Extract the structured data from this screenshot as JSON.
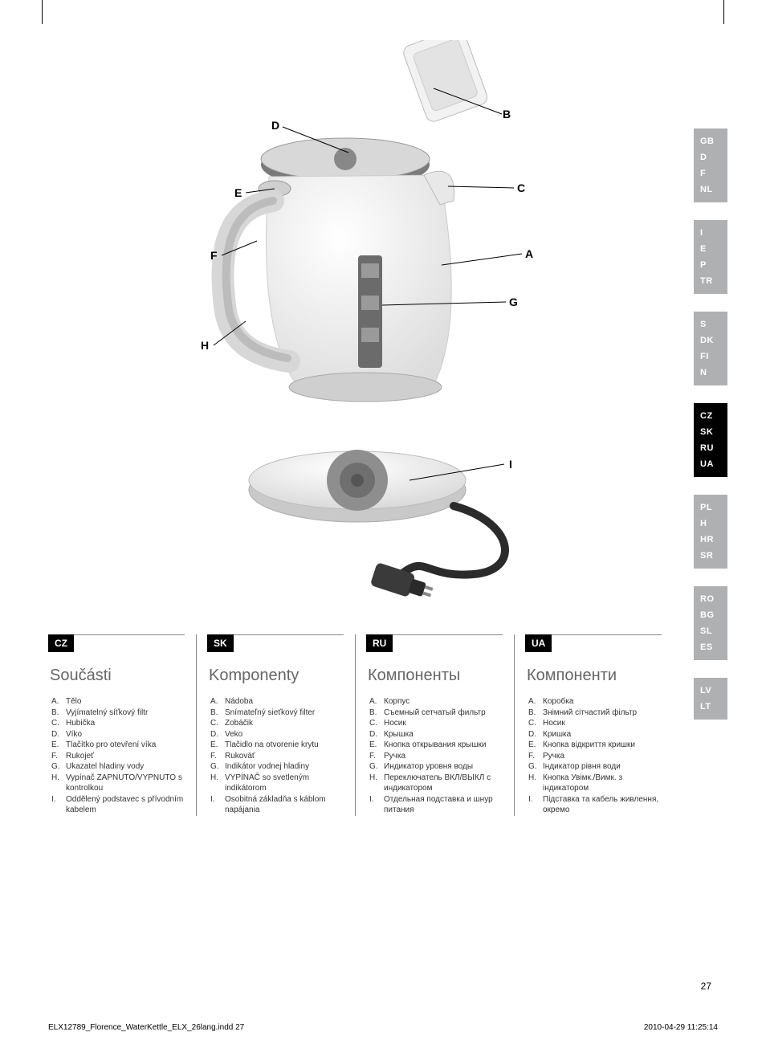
{
  "page_number": "27",
  "footer_left": "ELX12789_Florence_WaterKettle_ELX_26lang.indd   27",
  "footer_right": "2010-04-29   11:25:14",
  "diagram_labels": {
    "A": "A",
    "B": "B",
    "C": "C",
    "D": "D",
    "E": "E",
    "F": "F",
    "G": "G",
    "H": "H",
    "I": "I"
  },
  "columns": [
    {
      "code": "CZ",
      "title": "Součásti",
      "items": [
        {
          "l": "A.",
          "t": "Tělo"
        },
        {
          "l": "B.",
          "t": "Vyjímatelný síťkový filtr"
        },
        {
          "l": "C.",
          "t": "Hubička"
        },
        {
          "l": "D.",
          "t": "Víko"
        },
        {
          "l": "E.",
          "t": "Tlačítko pro otevření víka"
        },
        {
          "l": "F.",
          "t": "Rukojeť"
        },
        {
          "l": "G.",
          "t": "Ukazatel hladiny vody"
        },
        {
          "l": "H.",
          "t": "Vypínač ZAPNUTO/VYPNUTO s kontrolkou"
        },
        {
          "l": "I.",
          "t": "Oddělený podstavec s přívodním kabelem"
        }
      ]
    },
    {
      "code": "SK",
      "title": "Komponenty",
      "items": [
        {
          "l": "A.",
          "t": "Nádoba"
        },
        {
          "l": "B.",
          "t": "Snímateľný sieťkový filter"
        },
        {
          "l": "C.",
          "t": "Zobáčik"
        },
        {
          "l": "D.",
          "t": "Veko"
        },
        {
          "l": "E.",
          "t": "Tlačidlo na otvorenie krytu"
        },
        {
          "l": "F.",
          "t": "Rukoväť"
        },
        {
          "l": "G.",
          "t": "Indikátor vodnej hladiny"
        },
        {
          "l": "H.",
          "t": "VYPÍNAČ so svetleným indikátorom"
        },
        {
          "l": "I.",
          "t": "Osobitná základňa s káblom napájania"
        }
      ]
    },
    {
      "code": "RU",
      "title": "Компоненты",
      "items": [
        {
          "l": "A.",
          "t": "Корпус"
        },
        {
          "l": "B.",
          "t": "Съемный сетчатый фильтр"
        },
        {
          "l": "C.",
          "t": "Носик"
        },
        {
          "l": "D.",
          "t": "Крышка"
        },
        {
          "l": "E.",
          "t": "Кнопка открывания крышки"
        },
        {
          "l": "F.",
          "t": "Ручка"
        },
        {
          "l": "G.",
          "t": "Индикатор уровня воды"
        },
        {
          "l": "H.",
          "t": "Переключатель ВКЛ/ВЫКЛ с индикатором"
        },
        {
          "l": "I.",
          "t": "Отдельная подставка и шнур питания"
        }
      ]
    },
    {
      "code": "UA",
      "title": "Компоненти",
      "items": [
        {
          "l": "A.",
          "t": "Коробка"
        },
        {
          "l": "B.",
          "t": "Знімний сітчастий фільтр"
        },
        {
          "l": "C.",
          "t": "Носик"
        },
        {
          "l": "D.",
          "t": "Кришка"
        },
        {
          "l": "E.",
          "t": "Кнопка відкриття кришки"
        },
        {
          "l": "F.",
          "t": "Ручка"
        },
        {
          "l": "G.",
          "t": "Індикатор рівня води"
        },
        {
          "l": "H.",
          "t": "Кнопка Увімк./Вимк. з індикатором"
        },
        {
          "l": "I.",
          "t": "Підставка та кабель живлення, окремо"
        }
      ]
    }
  ],
  "lang_groups": [
    {
      "active": false,
      "langs": [
        "GB",
        "D",
        "F",
        "NL"
      ]
    },
    {
      "active": false,
      "langs": [
        "I",
        "E",
        "P",
        "TR"
      ]
    },
    {
      "active": false,
      "langs": [
        "S",
        "DK",
        "FI",
        "N"
      ]
    },
    {
      "active": true,
      "langs": [
        "CZ",
        "SK",
        "RU",
        "UA"
      ]
    },
    {
      "active": false,
      "langs": [
        "PL",
        "H",
        "HR",
        "SR"
      ]
    },
    {
      "active": false,
      "langs": [
        "RO",
        "BG",
        "SL",
        "ES"
      ]
    },
    {
      "active": false,
      "langs": [
        "LV",
        "LT"
      ]
    }
  ]
}
